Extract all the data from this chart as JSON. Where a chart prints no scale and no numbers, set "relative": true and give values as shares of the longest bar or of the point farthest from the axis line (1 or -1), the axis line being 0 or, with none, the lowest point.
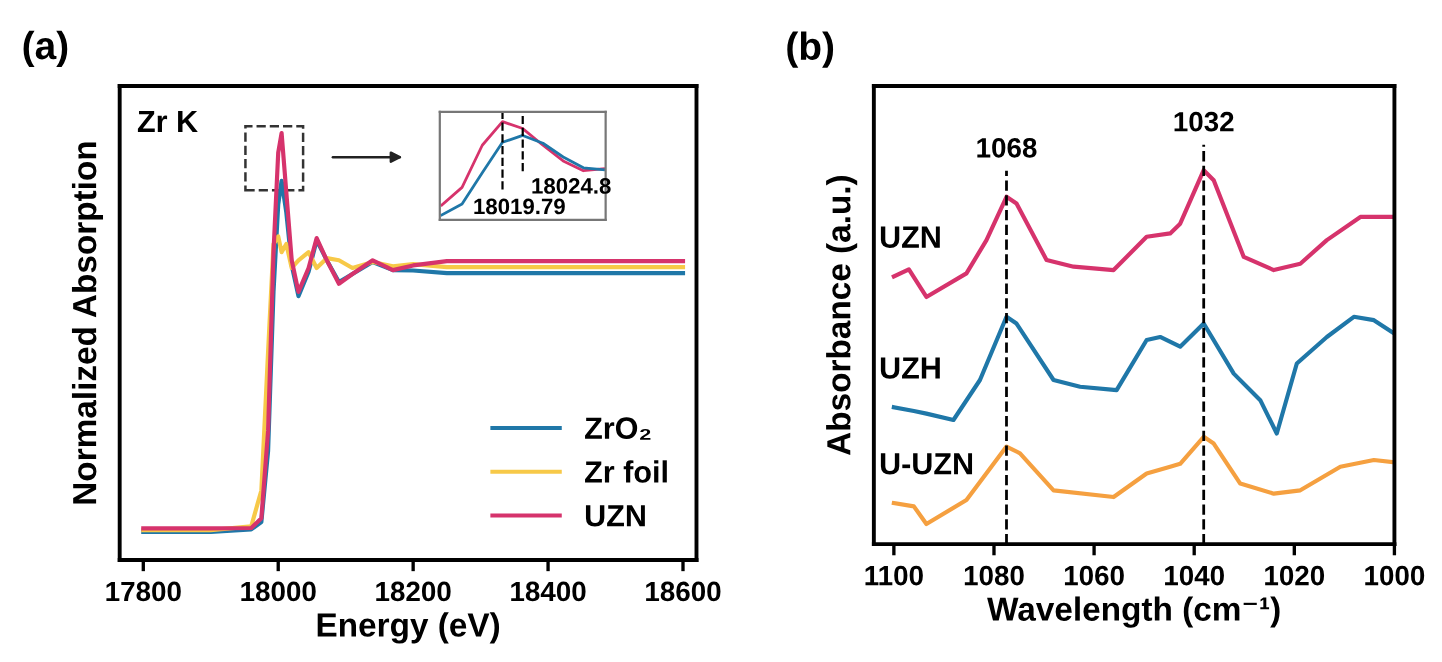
{
  "chart_data": [
    {
      "type": "line",
      "title": "(a)",
      "xlabel": "Energy (eV)",
      "ylabel": "Normalized Absorption",
      "relative": true,
      "annotations": [
        "Zr K"
      ],
      "x": [
        17800,
        17900,
        17960,
        17975,
        17985,
        17993,
        18000,
        18005,
        18012,
        18020,
        18030,
        18045,
        18057,
        18072,
        18090,
        18110,
        18140,
        18170,
        18200,
        18250,
        18300,
        18400,
        18500,
        18600
      ],
      "series": [
        {
          "name": "ZrO₂",
          "color": "#1f77a8",
          "values": [
            0.066,
            0.066,
            0.072,
            0.089,
            0.256,
            0.628,
            0.833,
            0.888,
            0.814,
            0.69,
            0.618,
            0.675,
            0.749,
            0.702,
            0.651,
            0.67,
            0.698,
            0.679,
            0.678,
            0.672,
            0.672,
            0.672,
            0.672,
            0.672
          ]
        },
        {
          "name": "Zr foil",
          "color": "#f7c948",
          "values": [
            0.07,
            0.07,
            0.079,
            0.163,
            0.489,
            0.74,
            0.758,
            0.721,
            0.74,
            0.684,
            0.702,
            0.721,
            0.684,
            0.707,
            0.702,
            0.684,
            0.698,
            0.688,
            0.693,
            0.686,
            0.686,
            0.686,
            0.686,
            0.686
          ]
        },
        {
          "name": "UZN",
          "color": "#d6336c",
          "values": [
            0.074,
            0.074,
            0.075,
            0.098,
            0.303,
            0.721,
            0.954,
            1.0,
            0.861,
            0.702,
            0.628,
            0.684,
            0.754,
            0.702,
            0.647,
            0.67,
            0.702,
            0.679,
            0.69,
            0.7,
            0.7,
            0.7,
            0.7,
            0.7
          ]
        }
      ],
      "xlim": [
        17765,
        18620
      ],
      "xticks": [
        17800,
        18000,
        18200,
        18400,
        18600
      ],
      "tick_labels": "x",
      "legend": "bottom right",
      "line_style": "solid",
      "marker": "none",
      "grid": false
    },
    {
      "type": "line",
      "relative": true,
      "tick_labels": false,
      "annotations": [
        "18019.79",
        "18024.8"
      ],
      "categories": [
        null,
        null,
        null,
        null,
        null,
        null,
        null,
        null,
        null
      ],
      "series": [
        {
          "color": "#d6336c",
          "values": [
            0.15,
            0.33,
            0.76,
            1.0,
            0.93,
            0.76,
            0.6,
            0.5,
            0.52
          ]
        },
        {
          "color": "#1f77a8",
          "values": [
            0.05,
            0.16,
            0.48,
            0.79,
            0.86,
            0.78,
            0.64,
            0.53,
            0.51
          ]
        }
      ],
      "line_style": "solid",
      "marker": "none",
      "grid": false
    },
    {
      "type": "line",
      "title": "(b)",
      "xlabel": "Wavelength (cm⁻¹)",
      "ylabel": "Absorbance (a.u.)",
      "relative": true,
      "annotations": [
        "1068",
        "1032"
      ],
      "series": [
        {
          "name": "UZN",
          "color": "#d6336c",
          "x": [
            1100,
            1097,
            1093.5,
            1085.5,
            1081.5,
            1077.5,
            1075.5,
            1069.5,
            1064.1,
            1056.1,
            1049.5,
            1044.8,
            1042.8,
            1038.1,
            1036.1,
            1030.1,
            1024.1,
            1018.8,
            1013.5,
            1006.8,
            1000
          ],
          "values": [
            0.716,
            0.735,
            0.661,
            0.724,
            0.813,
            0.929,
            0.911,
            0.76,
            0.742,
            0.733,
            0.822,
            0.831,
            0.857,
            1.0,
            0.973,
            0.768,
            0.733,
            0.75,
            0.813,
            0.875,
            0.875
          ]
        },
        {
          "name": "UZH",
          "color": "#1f77a8",
          "x": [
            1100,
            1096,
            1093.5,
            1088.1,
            1082.8,
            1077.5,
            1075.5,
            1068.1,
            1062.8,
            1055.5,
            1049.5,
            1046.8,
            1042.8,
            1038.1,
            1032.1,
            1026.8,
            1023.5,
            1019.5,
            1013.5,
            1008.1,
            1004.1,
            1000
          ],
          "values": [
            0.366,
            0.356,
            0.349,
            0.332,
            0.439,
            0.608,
            0.59,
            0.439,
            0.421,
            0.412,
            0.546,
            0.554,
            0.528,
            0.59,
            0.456,
            0.385,
            0.296,
            0.483,
            0.554,
            0.608,
            0.599,
            0.563
          ]
        },
        {
          "name": "U-UZN",
          "color": "#f5a040",
          "x": [
            1100,
            1096,
            1093.5,
            1085.5,
            1077.5,
            1074.8,
            1068.1,
            1056.1,
            1049.5,
            1044.8,
            1042.8,
            1038.1,
            1036.1,
            1030.8,
            1024.1,
            1018.8,
            1010.8,
            1004.1,
            1000
          ],
          "values": [
            0.11,
            0.101,
            0.054,
            0.118,
            0.261,
            0.243,
            0.144,
            0.126,
            0.189,
            0.207,
            0.215,
            0.287,
            0.269,
            0.162,
            0.135,
            0.144,
            0.207,
            0.225,
            0.219
          ]
        }
      ],
      "xlim": [
        1104,
        1000
      ],
      "xticks": [
        1100,
        1080,
        1060,
        1040,
        1020,
        1000
      ],
      "tick_labels": "x",
      "ref_lines": [
        {
          "axis": "x",
          "value": 1077.5,
          "line_style": "dashed",
          "color": "#000000"
        },
        {
          "axis": "x",
          "value": 1038.1,
          "line_style": "dashed",
          "color": "#000000"
        }
      ],
      "line_style": "solid",
      "marker": "none",
      "grid": false
    }
  ]
}
